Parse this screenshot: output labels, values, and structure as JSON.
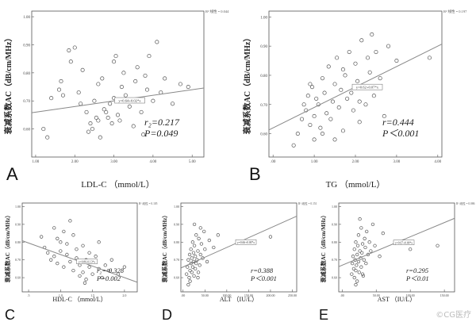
{
  "chart_data": [
    {
      "panel": "A",
      "type": "scatter",
      "ylabel": "衰减系数AC（dB/cm/MHz）",
      "xlabel": "LDL-C （mmol/L）",
      "xticks": [
        "1.00",
        "2.00",
        "3.00",
        "4.00",
        "5.00"
      ],
      "yticks": [
        "1.00",
        "0.90",
        "0.80",
        "0.70",
        "0.60"
      ],
      "xlim": [
        0.9,
        5.3
      ],
      "ylim": [
        0.5,
        1.02
      ],
      "legend": "R² 线性 = 0.044",
      "fit_label": "y=0.64+0.02*x",
      "fit": {
        "intercept": 0.64,
        "slope": 0.02
      },
      "stats": [
        "r₂=0.217",
        "P=0.049"
      ],
      "points": [
        [
          1.6,
          0.74
        ],
        [
          1.65,
          0.77
        ],
        [
          1.7,
          0.72
        ],
        [
          1.85,
          0.88
        ],
        [
          1.9,
          0.84
        ],
        [
          2.0,
          0.89
        ],
        [
          2.1,
          0.73
        ],
        [
          2.15,
          0.69
        ],
        [
          2.2,
          0.81
        ],
        [
          2.3,
          0.66
        ],
        [
          2.35,
          0.59
        ],
        [
          2.4,
          0.62
        ],
        [
          2.45,
          0.6
        ],
        [
          2.5,
          0.7
        ],
        [
          2.55,
          0.64
        ],
        [
          2.6,
          0.63
        ],
        [
          2.6,
          0.76
        ],
        [
          2.65,
          0.57
        ],
        [
          2.7,
          0.78
        ],
        [
          2.75,
          0.67
        ],
        [
          2.8,
          0.66
        ],
        [
          2.85,
          0.64
        ],
        [
          2.9,
          0.69
        ],
        [
          2.95,
          0.62
        ],
        [
          3.0,
          0.71
        ],
        [
          3.0,
          0.84
        ],
        [
          3.05,
          0.86
        ],
        [
          3.1,
          0.65
        ],
        [
          3.15,
          0.63
        ],
        [
          3.2,
          0.75
        ],
        [
          3.25,
          0.8
        ],
        [
          3.3,
          0.72
        ],
        [
          3.4,
          0.68
        ],
        [
          3.5,
          0.61
        ],
        [
          3.55,
          0.77
        ],
        [
          3.6,
          0.82
        ],
        [
          3.7,
          0.66
        ],
        [
          3.75,
          0.58
        ],
        [
          3.8,
          0.79
        ],
        [
          3.85,
          0.74
        ],
        [
          3.9,
          0.86
        ],
        [
          4.0,
          0.7
        ],
        [
          4.1,
          0.91
        ],
        [
          4.2,
          0.73
        ],
        [
          4.3,
          0.78
        ],
        [
          4.5,
          0.69
        ],
        [
          4.7,
          0.76
        ],
        [
          4.9,
          0.75
        ],
        [
          1.2,
          0.6
        ],
        [
          1.3,
          0.57
        ],
        [
          1.4,
          0.71
        ]
      ]
    },
    {
      "panel": "B",
      "type": "scatter",
      "ylabel": "衰减系数AC（dB/cm/MHz）",
      "xlabel": "TG （mmol/L）",
      "xticks": [
        ".00",
        "1.00",
        "2.00",
        "3.00",
        "4.00"
      ],
      "yticks": [
        "1.00",
        "0.90",
        "0.80",
        "0.70",
        "0.60"
      ],
      "xlim": [
        -0.1,
        4.1
      ],
      "ylim": [
        0.52,
        1.02
      ],
      "legend": "R² 线性 = 0.197",
      "fit_label": "y=0.62+0.07*x",
      "fit": {
        "intercept": 0.62,
        "slope": 0.07
      },
      "stats": [
        "r=0.444",
        "P＜0.001"
      ],
      "points": [
        [
          0.6,
          0.6
        ],
        [
          0.7,
          0.65
        ],
        [
          0.75,
          0.7
        ],
        [
          0.8,
          0.68
        ],
        [
          0.85,
          0.73
        ],
        [
          0.9,
          0.63
        ],
        [
          0.95,
          0.76
        ],
        [
          1.0,
          0.66
        ],
        [
          1.0,
          0.58
        ],
        [
          1.05,
          0.72
        ],
        [
          1.1,
          0.7
        ],
        [
          1.15,
          0.62
        ],
        [
          1.2,
          0.79
        ],
        [
          1.25,
          0.74
        ],
        [
          1.3,
          0.67
        ],
        [
          1.35,
          0.83
        ],
        [
          1.4,
          0.65
        ],
        [
          1.45,
          0.71
        ],
        [
          1.5,
          0.77
        ],
        [
          1.55,
          0.86
        ],
        [
          1.6,
          0.69
        ],
        [
          1.65,
          0.75
        ],
        [
          1.7,
          0.61
        ],
        [
          1.75,
          0.8
        ],
        [
          1.8,
          0.72
        ],
        [
          1.85,
          0.88
        ],
        [
          1.9,
          0.74
        ],
        [
          1.95,
          0.68
        ],
        [
          2.0,
          0.84
        ],
        [
          2.05,
          0.78
        ],
        [
          2.1,
          0.64
        ],
        [
          2.15,
          0.92
        ],
        [
          2.2,
          0.76
        ],
        [
          2.25,
          0.7
        ],
        [
          2.3,
          0.86
        ],
        [
          2.35,
          0.81
        ],
        [
          2.4,
          0.94
        ],
        [
          2.45,
          0.73
        ],
        [
          2.5,
          0.88
        ],
        [
          2.6,
          0.79
        ],
        [
          2.7,
          0.66
        ],
        [
          2.8,
          0.9
        ],
        [
          3.0,
          0.85
        ],
        [
          0.5,
          0.56
        ],
        [
          1.2,
          0.6
        ],
        [
          1.5,
          0.58
        ],
        [
          0.9,
          0.77
        ],
        [
          1.7,
          0.82
        ],
        [
          2.1,
          0.71
        ],
        [
          3.8,
          0.86
        ]
      ]
    },
    {
      "panel": "C",
      "type": "scatter",
      "ylabel": "衰减系数AC（dB/cm/MHz）",
      "xlabel": "HDL-C （mmol/L）",
      "xticks": [
        ".5",
        "1.0",
        "1.5",
        "2.0"
      ],
      "yticks": [
        "1.00",
        "0.90",
        "0.80",
        "0.70",
        "0.60"
      ],
      "xlim": [
        0.4,
        2.2
      ],
      "ylim": [
        0.52,
        1.02
      ],
      "legend": "R² 线性 = 0.105",
      "fit_label": "y=0.86-0.13*x",
      "fit": {
        "intercept": 0.86,
        "slope": -0.13
      },
      "stats": [
        "r₂=-0.328",
        "P=0.002"
      ],
      "points": [
        [
          0.7,
          0.83
        ],
        [
          0.75,
          0.77
        ],
        [
          0.8,
          0.74
        ],
        [
          0.85,
          0.7
        ],
        [
          0.9,
          0.88
        ],
        [
          0.9,
          0.72
        ],
        [
          0.95,
          0.68
        ],
        [
          1.0,
          0.8
        ],
        [
          1.0,
          0.75
        ],
        [
          1.05,
          0.66
        ],
        [
          1.1,
          0.79
        ],
        [
          1.1,
          0.73
        ],
        [
          1.15,
          0.69
        ],
        [
          1.2,
          0.84
        ],
        [
          1.2,
          0.64
        ],
        [
          1.25,
          0.76
        ],
        [
          1.25,
          0.71
        ],
        [
          1.3,
          0.67
        ],
        [
          1.3,
          0.61
        ],
        [
          1.35,
          0.78
        ],
        [
          1.35,
          0.63
        ],
        [
          1.4,
          0.7
        ],
        [
          1.4,
          0.59
        ],
        [
          1.45,
          0.74
        ],
        [
          1.45,
          0.66
        ],
        [
          1.5,
          0.62
        ],
        [
          1.5,
          0.69
        ],
        [
          1.55,
          0.72
        ],
        [
          1.6,
          0.65
        ],
        [
          1.6,
          0.8
        ],
        [
          1.65,
          0.6
        ],
        [
          1.7,
          0.67
        ],
        [
          1.75,
          0.64
        ],
        [
          1.8,
          0.7
        ],
        [
          1.9,
          0.62
        ],
        [
          2.0,
          0.66
        ],
        [
          1.15,
          0.92
        ],
        [
          1.05,
          0.86
        ],
        [
          0.95,
          0.82
        ],
        [
          1.38,
          0.57
        ]
      ]
    },
    {
      "panel": "D",
      "type": "scatter",
      "ylabel": "衰减系数AC（dB/cm/MHz）",
      "xlabel": "ALT （IU/L）",
      "xticks": [
        ".00",
        "50.00",
        "100.00",
        "150.00",
        "200.00",
        "250.00"
      ],
      "yticks": [
        "1.00",
        "0.90",
        "0.80",
        "0.70",
        "0.60"
      ],
      "xlim": [
        -5,
        260
      ],
      "ylim": [
        0.52,
        1.02
      ],
      "legend": "R² 线性 = 0.151",
      "fit_label": "y=0.66+0.00*x",
      "fit": {
        "intercept": 0.66,
        "slope": 0.0011
      },
      "stats": [
        "r=0.388",
        "P＜0.001"
      ],
      "points": [
        [
          8,
          0.62
        ],
        [
          10,
          0.66
        ],
        [
          12,
          0.7
        ],
        [
          14,
          0.6
        ],
        [
          15,
          0.73
        ],
        [
          16,
          0.64
        ],
        [
          18,
          0.68
        ],
        [
          18,
          0.76
        ],
        [
          20,
          0.63
        ],
        [
          20,
          0.71
        ],
        [
          22,
          0.66
        ],
        [
          22,
          0.8
        ],
        [
          24,
          0.69
        ],
        [
          24,
          0.74
        ],
        [
          25,
          0.61
        ],
        [
          26,
          0.78
        ],
        [
          28,
          0.65
        ],
        [
          28,
          0.72
        ],
        [
          30,
          0.84
        ],
        [
          30,
          0.68
        ],
        [
          32,
          0.7
        ],
        [
          34,
          0.75
        ],
        [
          35,
          0.63
        ],
        [
          36,
          0.82
        ],
        [
          38,
          0.67
        ],
        [
          40,
          0.88
        ],
        [
          40,
          0.73
        ],
        [
          42,
          0.79
        ],
        [
          45,
          0.71
        ],
        [
          48,
          0.86
        ],
        [
          50,
          0.76
        ],
        [
          55,
          0.69
        ],
        [
          60,
          0.81
        ],
        [
          70,
          0.77
        ],
        [
          80,
          0.84
        ],
        [
          200,
          0.83
        ],
        [
          16,
          0.58
        ],
        [
          12,
          0.56
        ],
        [
          26,
          0.9
        ],
        [
          34,
          0.6
        ]
      ]
    },
    {
      "panel": "E",
      "type": "scatter",
      "ylabel": "衰减系数AC（dB/cm/MHz）",
      "xlabel": "AST （IU/L）",
      "xticks": [
        ".00",
        "50.00",
        "100.00",
        "150.00"
      ],
      "yticks": [
        "1.00",
        "0.90",
        "0.80",
        "0.70",
        "0.60"
      ],
      "xlim": [
        -5,
        165
      ],
      "ylim": [
        0.52,
        1.02
      ],
      "legend": "R² 线性 = 0.086",
      "fit_label": "y=0.67+0.00*x",
      "fit": {
        "intercept": 0.67,
        "slope": 0.0016
      },
      "stats": [
        "r=0.295",
        "P＜0.01"
      ],
      "points": [
        [
          14,
          0.62
        ],
        [
          15,
          0.68
        ],
        [
          16,
          0.72
        ],
        [
          17,
          0.65
        ],
        [
          18,
          0.6
        ],
        [
          18,
          0.76
        ],
        [
          19,
          0.7
        ],
        [
          20,
          0.64
        ],
        [
          20,
          0.8
        ],
        [
          21,
          0.67
        ],
        [
          22,
          0.73
        ],
        [
          22,
          0.58
        ],
        [
          23,
          0.78
        ],
        [
          24,
          0.69
        ],
        [
          24,
          0.84
        ],
        [
          25,
          0.63
        ],
        [
          26,
          0.75
        ],
        [
          27,
          0.71
        ],
        [
          28,
          0.66
        ],
        [
          28,
          0.88
        ],
        [
          29,
          0.74
        ],
        [
          30,
          0.79
        ],
        [
          31,
          0.61
        ],
        [
          32,
          0.7
        ],
        [
          33,
          0.82
        ],
        [
          34,
          0.77
        ],
        [
          35,
          0.68
        ],
        [
          36,
          0.86
        ],
        [
          38,
          0.73
        ],
        [
          40,
          0.8
        ],
        [
          42,
          0.75
        ],
        [
          45,
          0.9
        ],
        [
          48,
          0.78
        ],
        [
          55,
          0.72
        ],
        [
          60,
          0.85
        ],
        [
          100,
          0.76
        ],
        [
          140,
          0.78
        ],
        [
          26,
          0.93
        ],
        [
          20,
          0.56
        ],
        [
          30,
          0.62
        ]
      ]
    }
  ],
  "watermark": "©CG医疗"
}
